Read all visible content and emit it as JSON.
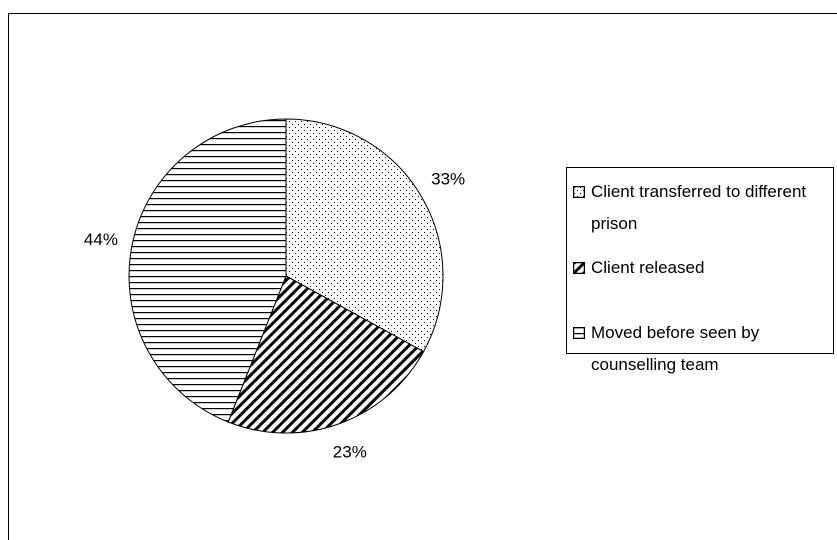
{
  "chart_data": {
    "type": "pie",
    "categories": [
      "Client transferred to different prison",
      "Client released",
      "Moved before seen by counselling team"
    ],
    "values": [
      33,
      23,
      44
    ],
    "value_labels": [
      "33%",
      "23%",
      "44%"
    ],
    "patterns": [
      "dots",
      "diagonal",
      "horizontal"
    ],
    "legend": "right"
  }
}
